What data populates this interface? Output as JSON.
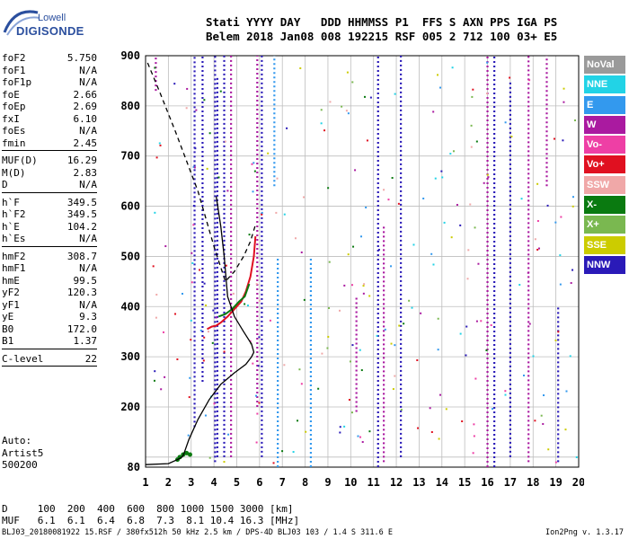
{
  "logo": {
    "line1": "Lowell",
    "line2": "DIGISONDE"
  },
  "header": {
    "line1": "Stati YYYY DAY   DDD HHMMSS P1  FFS S AXN PPS IGA PS",
    "line2": "Belem 2018 Jan08 008 192215 RSF 005 2 712 100 03+ E5"
  },
  "params": [
    {
      "name": "foF2",
      "value": "5.750"
    },
    {
      "name": "foF1",
      "value": "N/A"
    },
    {
      "name": "foF1p",
      "value": "N/A"
    },
    {
      "name": "foE",
      "value": "2.66"
    },
    {
      "name": "foEp",
      "value": "2.69"
    },
    {
      "name": "fxI",
      "value": "6.10"
    },
    {
      "name": "foEs",
      "value": "N/A"
    },
    {
      "name": "fmin",
      "value": "2.45"
    },
    {
      "sep": true
    },
    {
      "name": "MUF(D)",
      "value": "16.29"
    },
    {
      "name": "M(D)",
      "value": "2.83"
    },
    {
      "name": "D",
      "value": "N/A"
    },
    {
      "sep": true
    },
    {
      "name": "h`F",
      "value": "349.5"
    },
    {
      "name": "h`F2",
      "value": "349.5"
    },
    {
      "name": "h`E",
      "value": "104.2"
    },
    {
      "name": "h`Es",
      "value": "N/A"
    },
    {
      "sep": true
    },
    {
      "name": "hmF2",
      "value": "308.7"
    },
    {
      "name": "hmF1",
      "value": "N/A"
    },
    {
      "name": "hmE",
      "value": "99.5"
    },
    {
      "name": "yF2",
      "value": "120.3"
    },
    {
      "name": "yF1",
      "value": "N/A"
    },
    {
      "name": "yE",
      "value": "9.3"
    },
    {
      "name": "B0",
      "value": "172.0"
    },
    {
      "name": "B1",
      "value": "1.37"
    },
    {
      "sep": true
    },
    {
      "name": "C-level",
      "value": "22"
    },
    {
      "sep": true
    }
  ],
  "artist": {
    "line1": "Auto:",
    "line2": "Artist5",
    "line3": "500200"
  },
  "dm": {
    "d_line": "D     100  200  400  600  800 1000 1500 3000 [km]",
    "muf_line": "MUF   6.1  6.1  6.4  6.8  7.3  8.1 10.4 16.3 [MHz]"
  },
  "footer": {
    "left": "BLJ03_20180081922 15.RSF / 380fx512h 50 kHz 2.5 km / DPS-4D BLJ03 103 / 1.4 S 311.6 E",
    "right": "Ion2Png v. 1.3.17"
  },
  "legend": [
    {
      "label": "NoVal",
      "color": "#9a9a9a"
    },
    {
      "label": "NNE",
      "color": "#22d3e6"
    },
    {
      "label": "E",
      "color": "#3399ee"
    },
    {
      "label": "W",
      "color": "#aa1aa0"
    },
    {
      "label": "Vo-",
      "color": "#ee3fa5"
    },
    {
      "label": "Vo+",
      "color": "#e01020"
    },
    {
      "label": "SSW",
      "color": "#f0a8a8"
    },
    {
      "label": "X-",
      "color": "#0a7a10"
    },
    {
      "label": "X+",
      "color": "#7ab850"
    },
    {
      "label": "SSE",
      "color": "#cccc00"
    },
    {
      "label": "NNW",
      "color": "#2a1ab8"
    }
  ],
  "chart_data": {
    "type": "scatter",
    "xlim": [
      1,
      20
    ],
    "ylim": [
      80,
      900
    ],
    "x_ticks": [
      1,
      2,
      3,
      4,
      5,
      6,
      7,
      8,
      9,
      10,
      11,
      12,
      13,
      14,
      15,
      16,
      17,
      18,
      19,
      20
    ],
    "y_ticks": [
      80,
      100,
      200,
      300,
      400,
      500,
      600,
      700,
      800,
      900
    ],
    "grid": true,
    "vertical_traces": [
      {
        "x": 1.45,
        "y0": 830,
        "y1": 900,
        "color": "#aa1aa0"
      },
      {
        "x": 3.15,
        "y0": 160,
        "y1": 900,
        "color": "#2a1ab8"
      },
      {
        "x": 3.5,
        "y0": 250,
        "y1": 900,
        "color": "#2a1ab8"
      },
      {
        "x": 4.05,
        "y0": 90,
        "y1": 900,
        "color": "#2a1ab8"
      },
      {
        "x": 4.15,
        "y0": 100,
        "y1": 860,
        "color": "#2a1ab8"
      },
      {
        "x": 4.45,
        "y0": 100,
        "y1": 900,
        "color": "#2a1ab8"
      },
      {
        "x": 4.75,
        "y0": 100,
        "y1": 900,
        "color": "#aa1aa0"
      },
      {
        "x": 5.9,
        "y0": 200,
        "y1": 900,
        "color": "#aa1aa0"
      },
      {
        "x": 6.1,
        "y0": 100,
        "y1": 900,
        "color": "#2a1ab8"
      },
      {
        "x": 6.65,
        "y0": 640,
        "y1": 900,
        "color": "#3399ee"
      },
      {
        "x": 6.8,
        "y0": 80,
        "y1": 500,
        "color": "#3399ee"
      },
      {
        "x": 8.25,
        "y0": 80,
        "y1": 500,
        "color": "#3399ee"
      },
      {
        "x": 10.25,
        "y0": 190,
        "y1": 420,
        "color": "#aa1aa0"
      },
      {
        "x": 11.2,
        "y0": 80,
        "y1": 900,
        "color": "#2a1ab8"
      },
      {
        "x": 11.45,
        "y0": 90,
        "y1": 560,
        "color": "#aa1aa0"
      },
      {
        "x": 12.2,
        "y0": 100,
        "y1": 900,
        "color": "#2a1ab8"
      },
      {
        "x": 16.0,
        "y0": 80,
        "y1": 900,
        "color": "#aa1aa0"
      },
      {
        "x": 16.3,
        "y0": 80,
        "y1": 900,
        "color": "#2a1ab8"
      },
      {
        "x": 17.0,
        "y0": 100,
        "y1": 850,
        "color": "#2a1ab8"
      },
      {
        "x": 17.8,
        "y0": 90,
        "y1": 900,
        "color": "#aa1aa0"
      },
      {
        "x": 18.6,
        "y0": 640,
        "y1": 900,
        "color": "#aa1aa0"
      },
      {
        "x": 19.1,
        "y0": 90,
        "y1": 400,
        "color": "#2a1ab8"
      }
    ],
    "o_trace": [
      [
        3.7,
        355
      ],
      [
        3.9,
        360
      ],
      [
        4.1,
        362
      ],
      [
        4.3,
        368
      ],
      [
        4.6,
        380
      ],
      [
        4.9,
        395
      ],
      [
        5.2,
        410
      ],
      [
        5.4,
        430
      ],
      [
        5.6,
        460
      ],
      [
        5.75,
        500
      ],
      [
        5.82,
        540
      ]
    ],
    "x_trace": [
      [
        4.2,
        380
      ],
      [
        4.5,
        385
      ],
      [
        4.8,
        395
      ],
      [
        5.1,
        410
      ],
      [
        5.35,
        420
      ],
      [
        5.55,
        445
      ]
    ],
    "e_trace": [
      [
        2.4,
        95
      ],
      [
        2.5,
        100
      ],
      [
        2.65,
        105
      ],
      [
        2.8,
        108
      ],
      [
        2.95,
        105
      ]
    ],
    "profile_solid": [
      [
        1.0,
        85
      ],
      [
        2.0,
        87
      ],
      [
        2.4,
        95
      ],
      [
        2.6,
        100
      ],
      [
        2.66,
        104
      ],
      [
        2.9,
        135
      ],
      [
        3.3,
        175
      ],
      [
        3.8,
        215
      ],
      [
        4.3,
        245
      ],
      [
        4.9,
        268
      ],
      [
        5.4,
        285
      ],
      [
        5.65,
        300
      ],
      [
        5.75,
        309
      ],
      [
        5.65,
        325
      ],
      [
        5.3,
        350
      ],
      [
        4.9,
        380
      ],
      [
        4.6,
        420
      ],
      [
        4.45,
        500
      ],
      [
        4.3,
        560
      ],
      [
        4.1,
        620
      ]
    ],
    "profile_dashed": [
      [
        5.8,
        560
      ],
      [
        5.6,
        530
      ],
      [
        5.3,
        500
      ],
      [
        4.9,
        470
      ],
      [
        4.5,
        450
      ],
      [
        4.0,
        520
      ],
      [
        3.3,
        630
      ],
      [
        2.3,
        750
      ],
      [
        1.6,
        830
      ],
      [
        1.05,
        890
      ]
    ]
  }
}
